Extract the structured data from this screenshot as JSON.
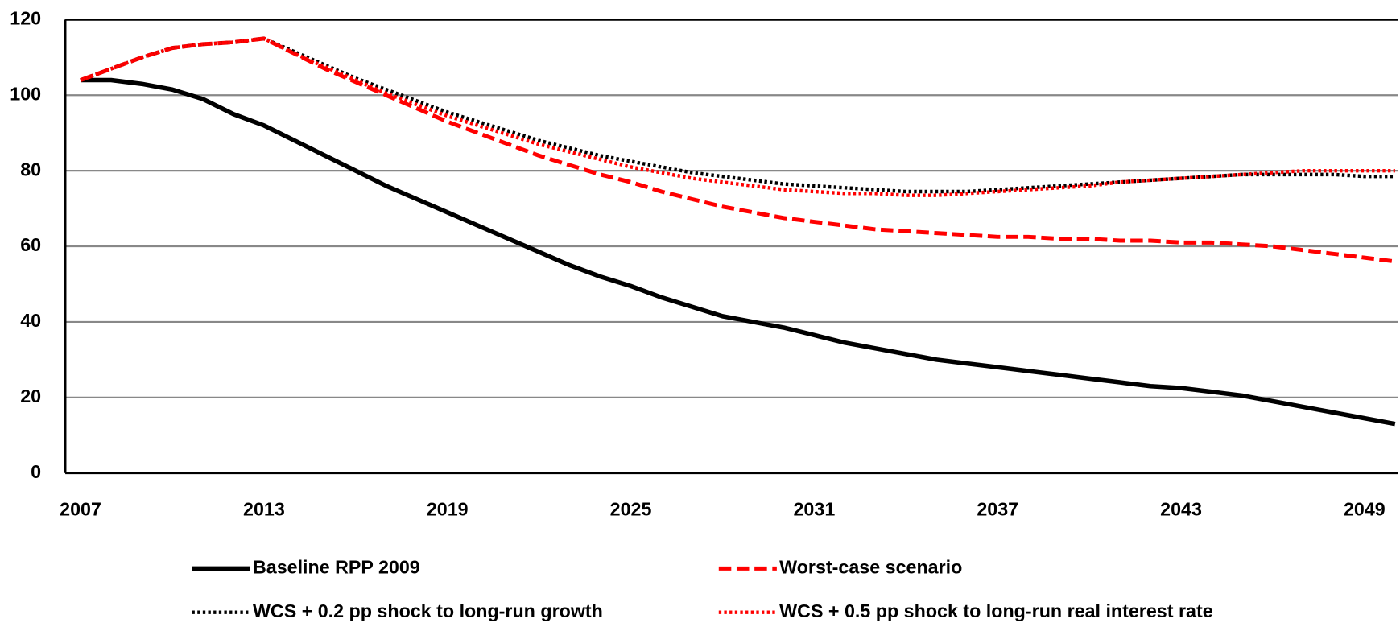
{
  "chart_data": {
    "type": "line",
    "x": [
      2007,
      2008,
      2009,
      2010,
      2011,
      2012,
      2013,
      2014,
      2015,
      2016,
      2017,
      2018,
      2019,
      2020,
      2021,
      2022,
      2023,
      2024,
      2025,
      2026,
      2027,
      2028,
      2029,
      2030,
      2031,
      2032,
      2033,
      2034,
      2035,
      2036,
      2037,
      2038,
      2039,
      2040,
      2041,
      2042,
      2043,
      2044,
      2045,
      2046,
      2047,
      2048,
      2049,
      2050
    ],
    "xlim": [
      2006.5,
      2050.1
    ],
    "xticks": [
      2007,
      2013,
      2019,
      2025,
      2031,
      2037,
      2043,
      2049
    ],
    "ylim": [
      0,
      120
    ],
    "yticks": [
      0,
      20,
      40,
      60,
      80,
      100,
      120
    ],
    "grid": true,
    "series": [
      {
        "name": "Baseline RPP 2009",
        "color": "#000000",
        "linestyle": "solid",
        "values": [
          104,
          104,
          103,
          101.5,
          99,
          95,
          92,
          88,
          84,
          80,
          76,
          72.5,
          69,
          65.5,
          62,
          58.5,
          55,
          52,
          49.5,
          46.5,
          44,
          41.5,
          40,
          38.5,
          36.5,
          34.5,
          33,
          31.5,
          30,
          29,
          28,
          27,
          26,
          25,
          24,
          23,
          22.5,
          21.5,
          20.5,
          19,
          17.5,
          16,
          14.5,
          13
        ]
      },
      {
        "name": "Worst-case scenario",
        "color": "#ff0000",
        "linestyle": "dashed",
        "values": [
          104,
          107,
          110,
          112.5,
          113.5,
          114,
          115,
          111,
          107,
          103.5,
          100,
          96.5,
          93,
          90,
          87,
          84,
          81.5,
          79,
          77,
          74.5,
          72.5,
          70.5,
          69,
          67.5,
          66.5,
          65.5,
          64.5,
          64,
          63.5,
          63,
          62.5,
          62.5,
          62,
          62,
          61.5,
          61.5,
          61,
          61,
          60.5,
          60,
          59,
          58,
          57,
          56
        ]
      },
      {
        "name": "WCS + 0.2 pp shock to long-run growth",
        "color": "#000000",
        "linestyle": "dotted",
        "values": [
          104,
          107,
          110,
          112.5,
          113.5,
          114,
          115,
          111.5,
          108,
          104.5,
          101.5,
          98.5,
          95.5,
          93,
          90.5,
          88,
          86,
          84,
          82.5,
          81,
          79.5,
          78.5,
          77.5,
          76.5,
          76,
          75.5,
          75,
          74.5,
          74.5,
          74.5,
          75,
          75.5,
          76,
          76.5,
          77,
          77.5,
          78,
          78.5,
          79,
          79,
          79,
          79,
          78.5,
          78.5
        ]
      },
      {
        "name": "WCS + 0.5 pp shock to long-run real interest rate",
        "color": "#ff0000",
        "linestyle": "dotted",
        "values": [
          104,
          107,
          110,
          112.5,
          113.5,
          114,
          115,
          111,
          107.5,
          104,
          100.5,
          97.5,
          94.5,
          92,
          89.5,
          87,
          85,
          83,
          81,
          79.5,
          78,
          77,
          76,
          75,
          74.5,
          74,
          74,
          73.5,
          73.5,
          74,
          74.5,
          75,
          75.5,
          76,
          77,
          77.5,
          78,
          78.5,
          79,
          79.5,
          80,
          80,
          80,
          80
        ]
      }
    ]
  }
}
